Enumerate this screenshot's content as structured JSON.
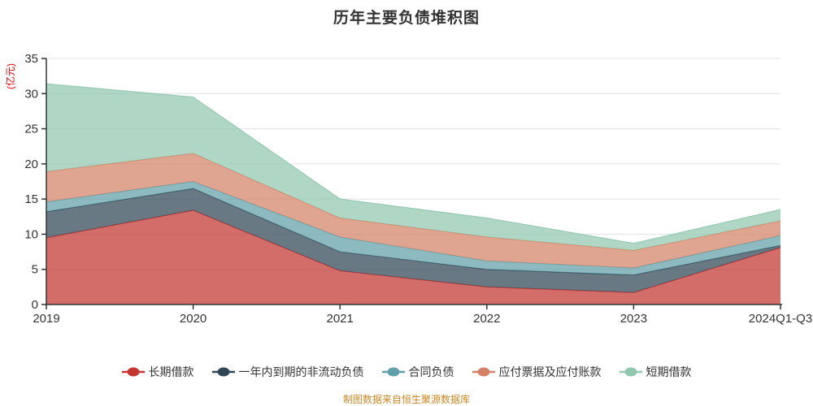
{
  "title": "历年主要负债堆积图",
  "footer": {
    "source_note": "制图数据来自恒生聚源数据库"
  },
  "colors": {
    "title_text": "#333333",
    "axis": "#333333",
    "grid": "#e0e0e6",
    "axis_name_text": "#e60000",
    "footer_text": "#ca8622",
    "legend_text": "#333333"
  },
  "chart_data": {
    "type": "area",
    "stacked": true,
    "title": "历年主要负债堆积图",
    "xlabel": "",
    "ylabel": "(亿元)",
    "categories": [
      "2019",
      "2020",
      "2021",
      "2022",
      "2023",
      "2024Q1-Q3"
    ],
    "series": [
      {
        "name": "长期借款",
        "color": "#c23531",
        "values": [
          9.5,
          13.4,
          4.8,
          2.5,
          1.7,
          8.1
        ]
      },
      {
        "name": "一年内到期的非流动负债",
        "color": "#2f4554",
        "values": [
          3.7,
          3.1,
          2.7,
          2.5,
          2.5,
          0.3
        ]
      },
      {
        "name": "合同负债",
        "color": "#61a0a8",
        "values": [
          1.4,
          1.0,
          2.1,
          1.2,
          1.0,
          1.4
        ]
      },
      {
        "name": "应付票据及应付账款",
        "color": "#d48265",
        "values": [
          4.3,
          4.0,
          2.7,
          3.4,
          2.5,
          2.1
        ]
      },
      {
        "name": "短期借款",
        "color": "#91c7ae",
        "values": [
          12.5,
          8.0,
          2.7,
          2.7,
          1.0,
          1.6
        ]
      }
    ],
    "stacked_totals": [
      31.4,
      29.5,
      15.0,
      12.3,
      8.7,
      13.5
    ],
    "y_ticks": [
      0,
      5,
      10,
      15,
      20,
      25,
      30,
      35
    ],
    "ylim": [
      0,
      35
    ],
    "grid": true,
    "area_opacity": 0.72,
    "legend_position": "bottom"
  }
}
